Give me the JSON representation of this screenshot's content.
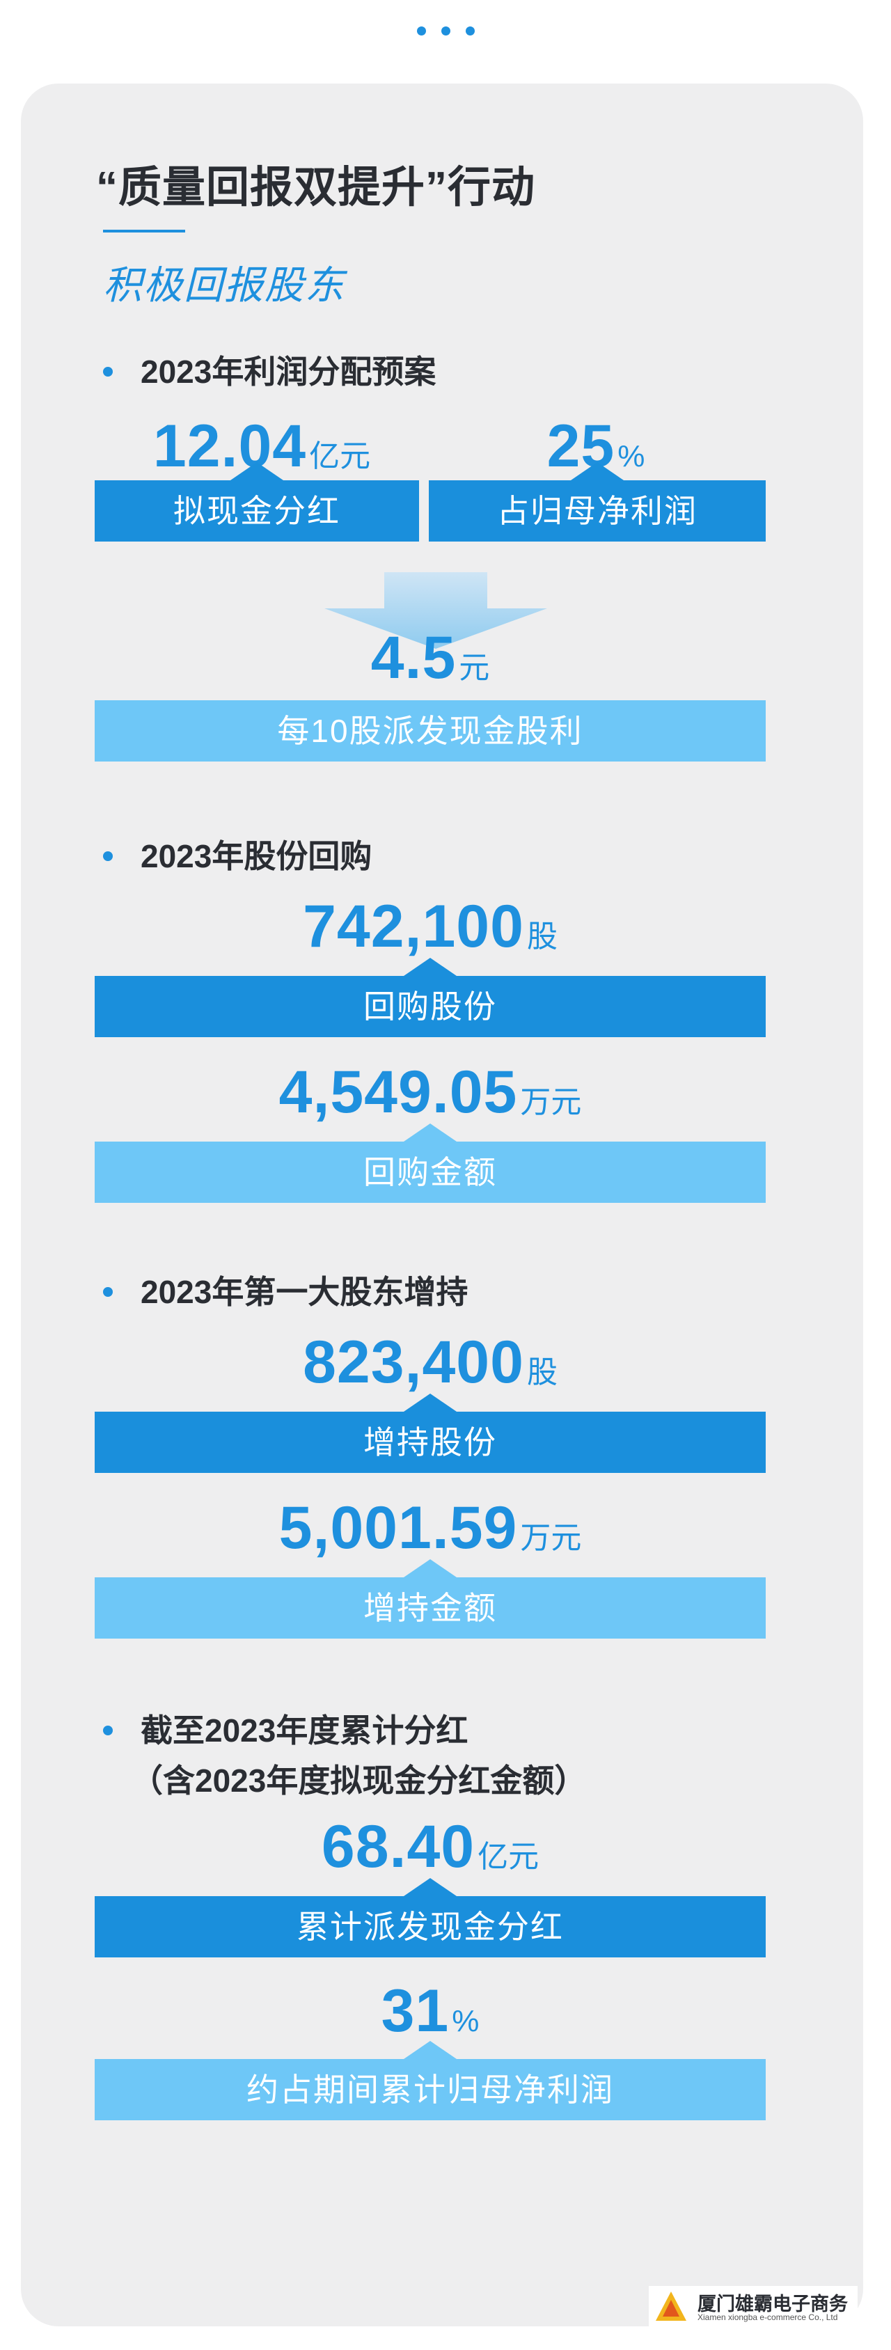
{
  "header": {
    "title": "“质量回报双提升”行动",
    "subtitle": "积极回报股东"
  },
  "sections": [
    {
      "heading": "2023年利润分配预案",
      "stats": [
        {
          "value": "12.04",
          "unit": "亿元",
          "label": "拟现金分红"
        },
        {
          "value": "25",
          "unit": "%",
          "label": "占归母净利润"
        },
        {
          "value": "4.5",
          "unit": "元",
          "label": "每10股派发现金股利"
        }
      ]
    },
    {
      "heading": "2023年股份回购",
      "stats": [
        {
          "value": "742,100",
          "unit": "股",
          "label": "回购股份"
        },
        {
          "value": "4,549.05",
          "unit": "万元",
          "label": "回购金额"
        }
      ]
    },
    {
      "heading": "2023年第一大股东增持",
      "stats": [
        {
          "value": "823,400",
          "unit": "股",
          "label": "增持股份"
        },
        {
          "value": "5,001.59",
          "unit": "万元",
          "label": "增持金额"
        }
      ]
    },
    {
      "heading": "截至2023年度累计分红",
      "heading_line2": "（含2023年度拟现金分红金额）",
      "stats": [
        {
          "value": "68.40",
          "unit": "亿元",
          "label": "累计派发现金分红"
        },
        {
          "value": "31",
          "unit": "%",
          "label": "约占期间累计归母净利润"
        }
      ]
    }
  ],
  "watermark": {
    "name": "厦门雄霸电子商务",
    "name_en": "Xiamen xiongba e-commerce Co., Ltd"
  },
  "colors": {
    "accent": "#1e90de",
    "bar_dark": "#1a8fdc",
    "bar_light": "#6ec7f7",
    "card_bg": "#eeeeef"
  },
  "icons": [
    "more-dots-icon",
    "down-arrow-icon",
    "bullet-dot-icon",
    "company-logo-icon"
  ]
}
